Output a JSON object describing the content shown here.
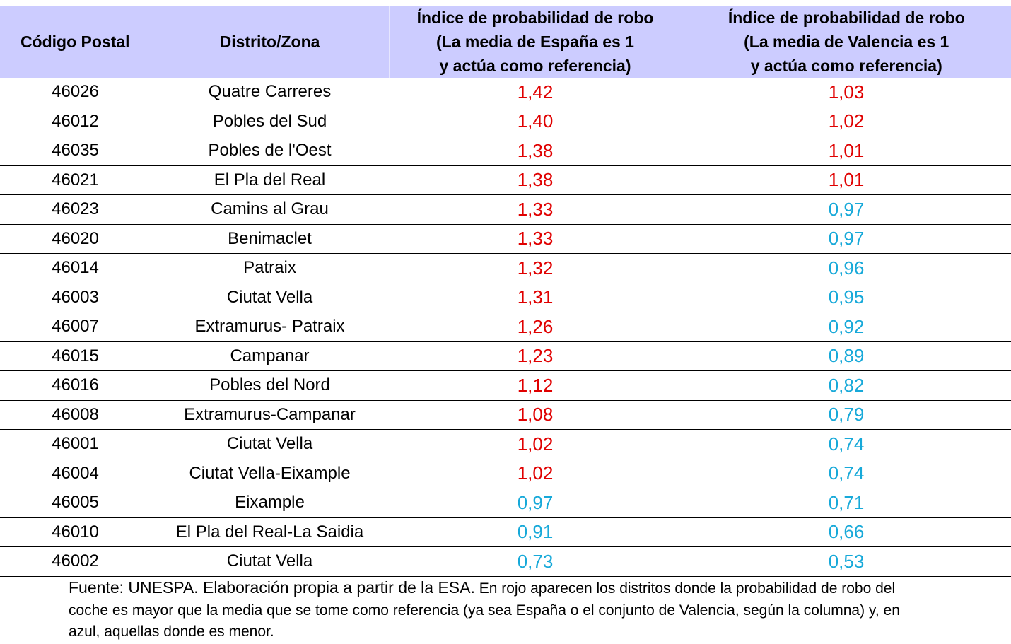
{
  "colors": {
    "header_bg": "#ccccff",
    "above_average": "#e00000",
    "below_average": "#17a9d9"
  },
  "table": {
    "headers": {
      "postal_code": "Código Postal",
      "district": "Distrito/Zona",
      "spain_index": [
        "Índice de probabilidad de robo",
        "(La media de España es 1",
        "y actúa como referencia)"
      ],
      "valencia_index": [
        "Índice de probabilidad de robo",
        "(La media de Valencia es 1",
        "y actúa como referencia)"
      ]
    },
    "rows": [
      {
        "cp": "46026",
        "zona": "Quatre Carreres",
        "spain": "1,42",
        "valencia": "1,03"
      },
      {
        "cp": "46012",
        "zona": "Pobles del Sud",
        "spain": "1,40",
        "valencia": "1,02"
      },
      {
        "cp": "46035",
        "zona": "Pobles de l'Oest",
        "spain": "1,38",
        "valencia": "1,01"
      },
      {
        "cp": "46021",
        "zona": "El Pla del Real",
        "spain": "1,38",
        "valencia": "1,01"
      },
      {
        "cp": "46023",
        "zona": "Camins al Grau",
        "spain": "1,33",
        "valencia": "0,97"
      },
      {
        "cp": "46020",
        "zona": "Benimaclet",
        "spain": "1,33",
        "valencia": "0,97"
      },
      {
        "cp": "46014",
        "zona": "Patraix",
        "spain": "1,32",
        "valencia": "0,96"
      },
      {
        "cp": "46003",
        "zona": "Ciutat Vella",
        "spain": "1,31",
        "valencia": "0,95"
      },
      {
        "cp": "46007",
        "zona": "Extramurus- Patraix",
        "spain": "1,26",
        "valencia": "0,92"
      },
      {
        "cp": "46015",
        "zona": "Campanar",
        "spain": "1,23",
        "valencia": "0,89"
      },
      {
        "cp": "46016",
        "zona": "Pobles del Nord",
        "spain": "1,12",
        "valencia": "0,82"
      },
      {
        "cp": "46008",
        "zona": "Extramurus-Campanar",
        "spain": "1,08",
        "valencia": "0,79"
      },
      {
        "cp": "46001",
        "zona": "Ciutat Vella",
        "spain": "1,02",
        "valencia": "0,74"
      },
      {
        "cp": "46004",
        "zona": "Ciutat Vella-Eixample",
        "spain": "1,02",
        "valencia": "0,74"
      },
      {
        "cp": "46005",
        "zona": "Eixample",
        "spain": "0,97",
        "valencia": "0,71"
      },
      {
        "cp": "46010",
        "zona": "El Pla del Real-La Saidia",
        "spain": "0,91",
        "valencia": "0,66"
      },
      {
        "cp": "46002",
        "zona": "Ciutat Vella",
        "spain": "0,73",
        "valencia": "0,53"
      }
    ]
  },
  "note": {
    "source": "Fuente: UNESPA. Elaboración propia a partir de la ESA.",
    "text": "En rojo aparecen los distritos donde la probabilidad de robo del coche es mayor que la media que se tome como referencia (ya sea España o el conjunto de Valencia, según la columna) y, en azul, aquellas donde es menor."
  }
}
